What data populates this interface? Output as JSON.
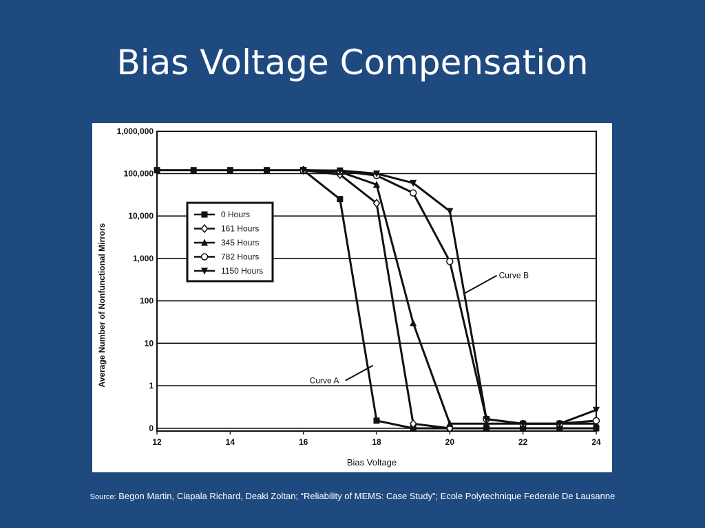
{
  "slide": {
    "title": "Bias Voltage Compensation",
    "source_prefix": "Source:",
    "source_text": " Begon Martin, Ciapala Richard, Deaki Zoltan; “Reliability of MEMS: Case Study”; Ecole Polytechnique Federale De Lausanne"
  },
  "colors": {
    "background": "#1f4a80",
    "title": "#ffffff",
    "panel": "#ffffff",
    "ink": "#111111"
  },
  "chart_data": {
    "type": "line",
    "title": "",
    "xlabel": "Bias Voltage",
    "ylabel": "Average Number of Nonfunctional Mirrors",
    "y_scale": "log",
    "xlim": [
      12,
      24
    ],
    "x_ticks": [
      12,
      14,
      16,
      18,
      20,
      22,
      24
    ],
    "y_ticks": [
      {
        "value": 0,
        "label": "0"
      },
      {
        "value": 1,
        "label": "1"
      },
      {
        "value": 10,
        "label": "10"
      },
      {
        "value": 100,
        "label": "100"
      },
      {
        "value": 1000,
        "label": "1,000"
      },
      {
        "value": 10000,
        "label": "10,000"
      },
      {
        "value": 100000,
        "label": "100,000"
      },
      {
        "value": 1000000,
        "label": "1,000,000"
      }
    ],
    "grid": "horizontal",
    "legend_position": "upper-left",
    "series": [
      {
        "name": "0 Hours",
        "marker": "square",
        "x": [
          12,
          13,
          14,
          15,
          16,
          17,
          18,
          19,
          20,
          21,
          22,
          23,
          24
        ],
        "y": [
          120000,
          120000,
          120000,
          120000,
          120000,
          25000,
          0.25,
          0,
          0,
          0,
          0,
          0,
          0
        ]
      },
      {
        "name": "161 Hours",
        "marker": "diamond",
        "x": [
          16,
          17,
          18,
          19,
          20
        ],
        "y": [
          120000,
          95000,
          20000,
          0.15,
          0
        ]
      },
      {
        "name": "345 Hours",
        "marker": "triangle-up",
        "x": [
          16,
          17,
          18,
          19,
          20,
          21,
          22,
          23,
          24
        ],
        "y": [
          120000,
          110000,
          55000,
          30,
          0.15,
          0.15,
          0.15,
          0.15,
          0.15
        ]
      },
      {
        "name": "782 Hours",
        "marker": "circle",
        "x": [
          16,
          17,
          18,
          19,
          20,
          21,
          22,
          23,
          24
        ],
        "y": [
          120000,
          115000,
          90000,
          35000,
          850,
          0.3,
          0.15,
          0.15,
          0.25
        ]
      },
      {
        "name": "1150 Hours",
        "marker": "triangle-down",
        "x": [
          16,
          17,
          18,
          19,
          20,
          21,
          22,
          23,
          24
        ],
        "y": [
          120000,
          118000,
          100000,
          60000,
          13000,
          0.3,
          0.15,
          0.15,
          0.6
        ]
      }
    ],
    "annotations": [
      {
        "text": "Curve A",
        "x": 17.9,
        "y": 3
      },
      {
        "text": "Curve B",
        "x": 20.4,
        "y": 150
      }
    ]
  }
}
